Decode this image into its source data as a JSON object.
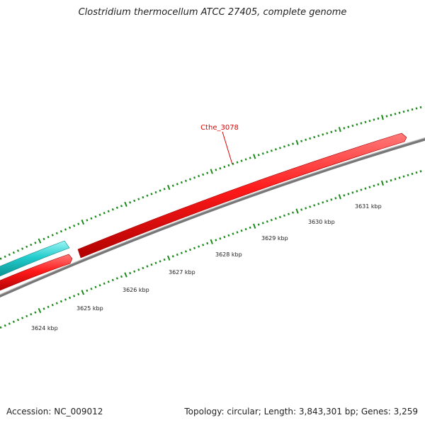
{
  "title": "Clostridium thermocellum ATCC 27405, complete genome",
  "accession_text": "Accession: NC_009012",
  "topology_text": "Topology: circular; Length: 3,843,301 bp; Genes: 3,259",
  "gene_label": "Cthe_3078",
  "colors": {
    "forward_gene": "#ff1a1a",
    "cds_cyan": "#20c8c8",
    "backbone": "#808080",
    "tick": "#1a8a1a",
    "label_red": "#dd0000"
  },
  "scale_labels": [
    "3624 kbp",
    "3625 kbp",
    "3626 kbp",
    "3627 kbp",
    "3628 kbp",
    "3629 kbp",
    "3630 kbp",
    "3631 kbp"
  ]
}
